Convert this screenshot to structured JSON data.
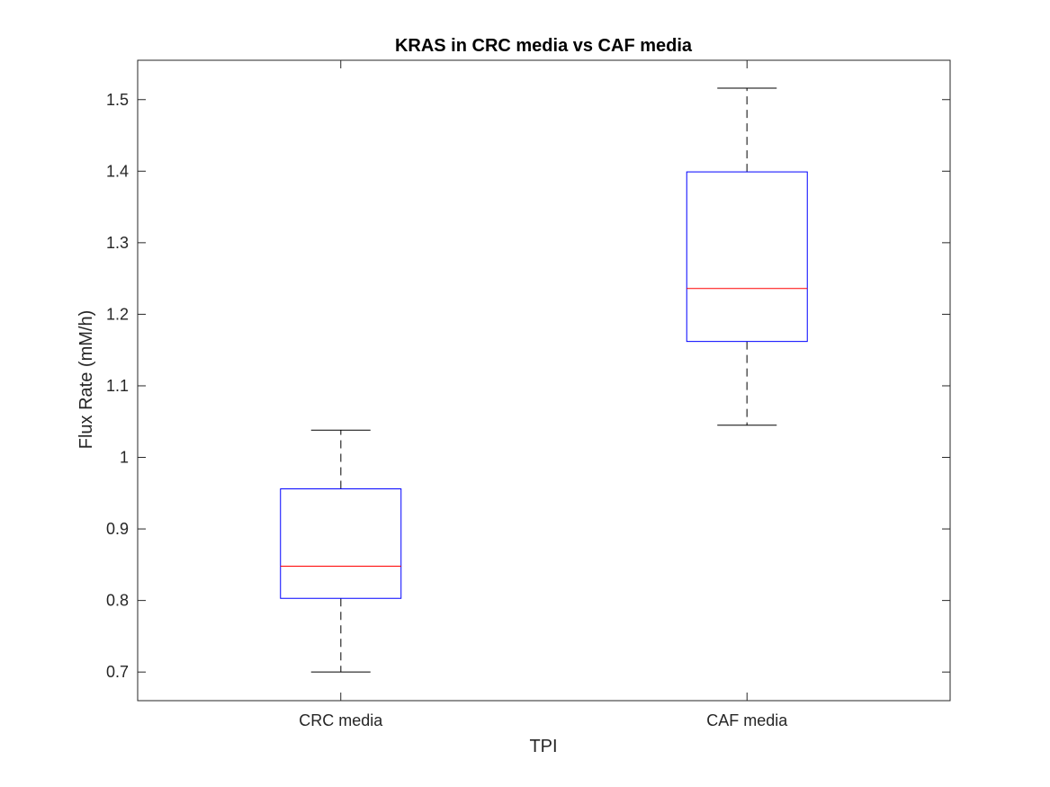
{
  "chart_data": {
    "type": "box",
    "title": "KRAS in CRC media vs CAF media",
    "xlabel": "TPI",
    "ylabel": "Flux Rate (mM/h)",
    "categories": [
      "CRC media",
      "CAF media"
    ],
    "ylim": [
      0.66,
      1.555
    ],
    "yticks": [
      0.7,
      0.8,
      0.9,
      1.0,
      1.1,
      1.2,
      1.3,
      1.4,
      1.5
    ],
    "ytick_labels": [
      "0.7",
      "0.8",
      "0.9",
      "1",
      "1.1",
      "1.2",
      "1.3",
      "1.4",
      "1.5"
    ],
    "boxes": [
      {
        "category": "CRC media",
        "whisker_low": 0.7,
        "q1": 0.803,
        "median": 0.848,
        "q3": 0.956,
        "whisker_high": 1.038
      },
      {
        "category": "CAF media",
        "whisker_low": 1.045,
        "q1": 1.162,
        "median": 1.236,
        "q3": 1.399,
        "whisker_high": 1.516
      }
    ],
    "grid": false,
    "colors": {
      "box": "#0000ff",
      "median": "#ff0000",
      "whisker": "#000000",
      "dash": "#555555",
      "axes": "#262626"
    }
  }
}
